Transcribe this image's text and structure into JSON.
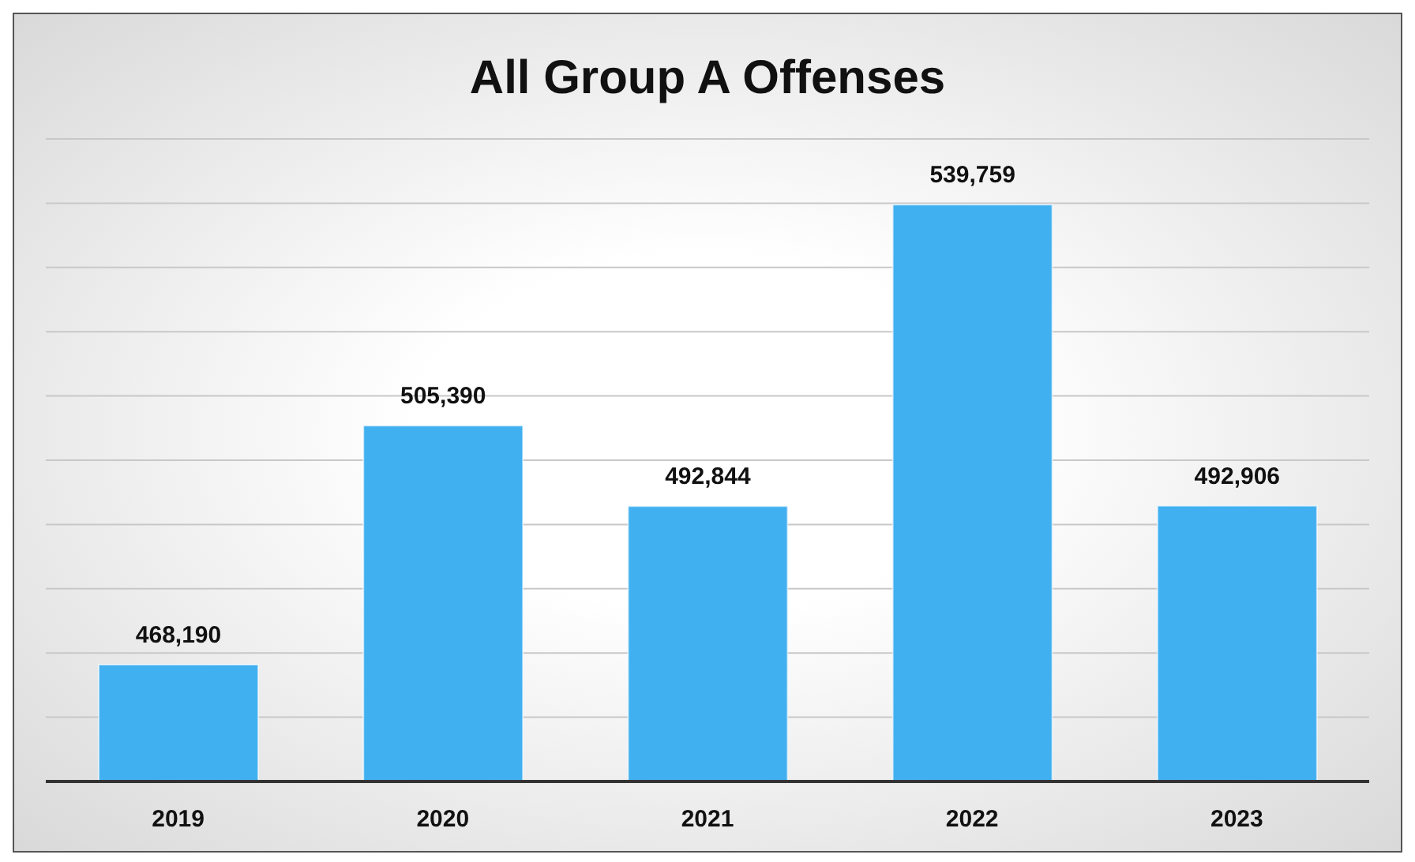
{
  "chart_data": {
    "type": "bar",
    "title": "All Group A Offenses",
    "categories": [
      "2019",
      "2020",
      "2021",
      "2022",
      "2023"
    ],
    "values": [
      468190,
      505390,
      492844,
      539759,
      492906
    ],
    "value_labels": [
      "468,190",
      "505,390",
      "492,844",
      "539,759",
      "492,906"
    ],
    "color": "#41b0f0",
    "ylim": [
      450000,
      550000
    ],
    "grid": "y",
    "tick_labels": "x"
  }
}
